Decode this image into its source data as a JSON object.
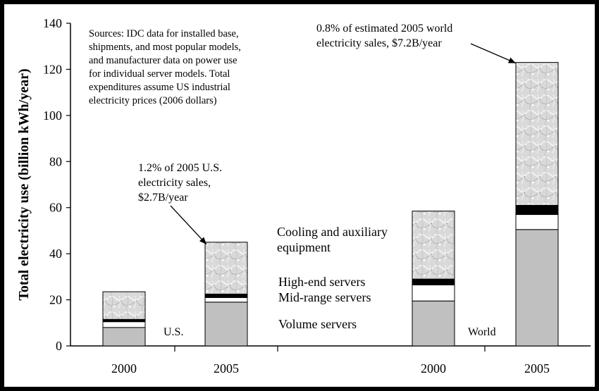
{
  "chart_data": {
    "type": "bar",
    "stacked": true,
    "categories": [
      "2000",
      "2005",
      "2000",
      "2005"
    ],
    "groups": [
      "U.S.",
      "World"
    ],
    "series": [
      {
        "name": "Volume servers",
        "values": [
          8.0,
          19.0,
          19.5,
          50.5
        ],
        "color": "#c0c0c0"
      },
      {
        "name": "Mid-range servers",
        "values": [
          2.5,
          2.0,
          7.0,
          6.5
        ],
        "color": "#ffffff"
      },
      {
        "name": "High-end servers",
        "values": [
          1.0,
          1.5,
          2.5,
          4.0
        ],
        "color": "#000000"
      },
      {
        "name": "Cooling and auxiliary equipment",
        "values": [
          12.0,
          22.5,
          29.5,
          62.0
        ],
        "color": "#d8d8d8"
      }
    ],
    "ylabel": "Total electricity use (billion kWh/year)",
    "ylim": [
      0,
      140
    ],
    "yticks": [
      "0",
      "20",
      "40",
      "60",
      "80",
      "100",
      "120",
      "140"
    ],
    "grid": false,
    "annotations": {
      "sources": "Sources:  IDC data for installed base,\nshipments, and most popular models,\nand manufacturer data on power use\nfor individual server models.  Total\nexpenditures assume US industrial\nelectricity prices (2006 dollars)",
      "us_2005": "1.2% of 2005 U.S.\nelectricity sales,\n$2.7B/year",
      "world_2005": "0.8% of estimated 2005 world\nelectricity sales, $7.2B/year"
    }
  }
}
